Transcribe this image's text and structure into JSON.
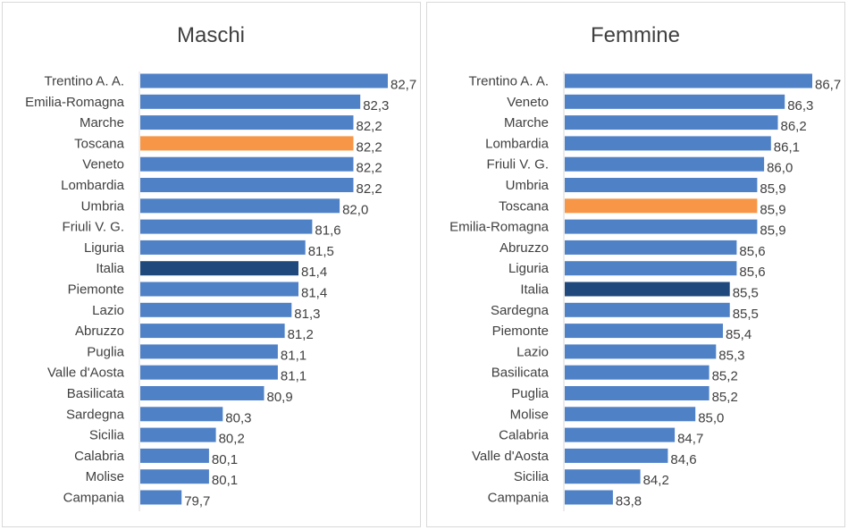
{
  "colors": {
    "bar": "#4f81c7",
    "toscana": "#f79646",
    "italia": "#1f497d",
    "axis": "#d9d9d9",
    "text": "#404040"
  },
  "chart_data": [
    {
      "type": "bar",
      "orientation": "horizontal",
      "title": "Maschi",
      "xlim": [
        79.1,
        82.7
      ],
      "categories": [
        "Trentino A. A.",
        "Emilia-Romagna",
        "Marche",
        "Toscana",
        "Veneto",
        "Lombardia",
        "Umbria",
        "Friuli V. G.",
        "Liguria",
        "Italia",
        "Piemonte",
        "Lazio",
        "Abruzzo",
        "Puglia",
        "Valle d'Aosta",
        "Basilicata",
        "Sardegna",
        "Sicilia",
        "Calabria",
        "Molise",
        "Campania"
      ],
      "values": [
        82.7,
        82.3,
        82.2,
        82.2,
        82.2,
        82.2,
        82.0,
        81.6,
        81.5,
        81.4,
        81.4,
        81.3,
        81.2,
        81.1,
        81.1,
        80.9,
        80.3,
        80.2,
        80.1,
        80.1,
        79.7
      ],
      "labels": [
        "82,7",
        "82,3",
        "82,2",
        "82,2",
        "82,2",
        "82,2",
        "82,0",
        "81,6",
        "81,5",
        "81,4",
        "81,4",
        "81,3",
        "81,2",
        "81,1",
        "81,1",
        "80,9",
        "80,3",
        "80,2",
        "80,1",
        "80,1",
        "79,7"
      ],
      "highlight": {
        "Toscana": "toscana",
        "Italia": "italia"
      }
    },
    {
      "type": "bar",
      "orientation": "horizontal",
      "title": "Femmine",
      "xlim": [
        83.1,
        86.7
      ],
      "categories": [
        "Trentino A. A.",
        "Veneto",
        "Marche",
        "Lombardia",
        "Friuli V. G.",
        "Umbria",
        "Toscana",
        "Emilia-Romagna",
        "Abruzzo",
        "Liguria",
        "Italia",
        "Sardegna",
        "Piemonte",
        "Lazio",
        "Basilicata",
        "Puglia",
        "Molise",
        "Calabria",
        "Valle d'Aosta",
        "Sicilia",
        "Campania"
      ],
      "values": [
        86.7,
        86.3,
        86.2,
        86.1,
        86.0,
        85.9,
        85.9,
        85.9,
        85.6,
        85.6,
        85.5,
        85.5,
        85.4,
        85.3,
        85.2,
        85.2,
        85.0,
        84.7,
        84.6,
        84.2,
        83.8
      ],
      "labels": [
        "86,7",
        "86,3",
        "86,2",
        "86,1",
        "86,0",
        "85,9",
        "85,9",
        "85,9",
        "85,6",
        "85,6",
        "85,5",
        "85,5",
        "85,4",
        "85,3",
        "85,2",
        "85,2",
        "85,0",
        "84,7",
        "84,6",
        "84,2",
        "83,8"
      ],
      "highlight": {
        "Toscana": "toscana",
        "Italia": "italia"
      }
    }
  ]
}
